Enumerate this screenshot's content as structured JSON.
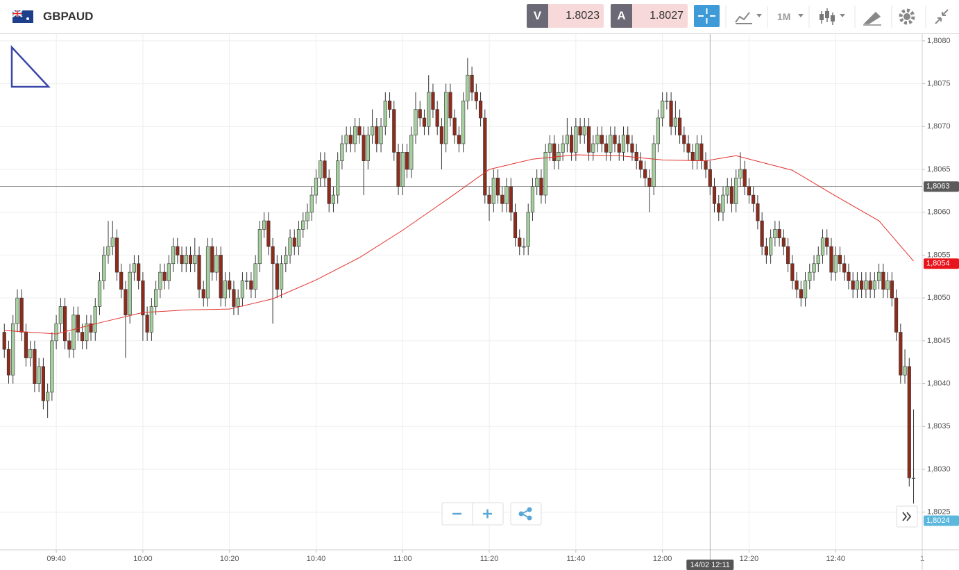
{
  "toolbar": {
    "symbol": "GBPAUD",
    "sell": {
      "label": "V",
      "price": 1.8023
    },
    "buy": {
      "label": "A",
      "price": 1.8027
    },
    "timeframe": "1M"
  },
  "chart_data": {
    "type": "candlestick",
    "grid": true,
    "up_color": "#a6cf9f",
    "down_color": "#8e2c1c",
    "x": [
      "09:28",
      "09:29",
      "09:30",
      "09:31",
      "09:32",
      "09:33",
      "09:34",
      "09:35",
      "09:36",
      "09:37",
      "09:38",
      "09:39",
      "09:40",
      "09:41",
      "09:42",
      "09:43",
      "09:44",
      "09:45",
      "09:46",
      "09:47",
      "09:48",
      "09:49",
      "09:50",
      "09:51",
      "09:52",
      "09:53",
      "09:54",
      "09:55",
      "09:56",
      "09:57",
      "09:58",
      "09:59",
      "10:00",
      "10:01",
      "10:02",
      "10:03",
      "10:04",
      "10:05",
      "10:06",
      "10:07",
      "10:08",
      "10:09",
      "10:10",
      "10:11",
      "10:12",
      "10:13",
      "10:14",
      "10:15",
      "10:16",
      "10:17",
      "10:18",
      "10:19",
      "10:20",
      "10:21",
      "10:22",
      "10:23",
      "10:24",
      "10:25",
      "10:26",
      "10:27",
      "10:28",
      "10:29",
      "10:30",
      "10:31",
      "10:32",
      "10:33",
      "10:34",
      "10:35",
      "10:36",
      "10:37",
      "10:38",
      "10:39",
      "10:40",
      "10:41",
      "10:42",
      "10:43",
      "10:44",
      "10:45",
      "10:46",
      "10:47",
      "10:48",
      "10:49",
      "10:50",
      "10:51",
      "10:52",
      "10:53",
      "10:54",
      "10:55",
      "10:56",
      "10:57",
      "10:58",
      "10:59",
      "11:00",
      "11:01",
      "11:02",
      "11:03",
      "11:04",
      "11:05",
      "11:06",
      "11:07",
      "11:08",
      "11:09",
      "11:10",
      "11:11",
      "11:12",
      "11:13",
      "11:14",
      "11:15",
      "11:16",
      "11:17",
      "11:18",
      "11:19",
      "11:20",
      "11:21",
      "11:22",
      "11:23",
      "11:24",
      "11:25",
      "11:26",
      "11:27",
      "11:28",
      "11:29",
      "11:30",
      "11:31",
      "11:32",
      "11:33",
      "11:34",
      "11:35",
      "11:36",
      "11:37",
      "11:38",
      "11:39",
      "11:40",
      "11:41",
      "11:42",
      "11:43",
      "11:44",
      "11:45",
      "11:46",
      "11:47",
      "11:48",
      "11:49",
      "11:50",
      "11:51",
      "11:52",
      "11:53",
      "11:54",
      "11:55",
      "11:56",
      "11:57",
      "11:58",
      "11:59",
      "12:00",
      "12:01",
      "12:02",
      "12:03",
      "12:04",
      "12:05",
      "12:06",
      "12:07",
      "12:08",
      "12:09",
      "12:10",
      "12:11",
      "12:12",
      "12:13",
      "12:14",
      "12:15",
      "12:16",
      "12:17",
      "12:18",
      "12:19",
      "12:20",
      "12:21",
      "12:22",
      "12:23",
      "12:24",
      "12:25",
      "12:26",
      "12:27",
      "12:28",
      "12:29",
      "12:30",
      "12:31",
      "12:32",
      "12:33",
      "12:34",
      "12:35",
      "12:36",
      "12:37",
      "12:38",
      "12:39",
      "12:40",
      "12:41",
      "12:42",
      "12:43",
      "12:44",
      "12:45",
      "12:46",
      "12:47",
      "12:48",
      "12:49",
      "12:50",
      "12:51",
      "12:52",
      "12:53",
      "12:54",
      "12:55",
      "12:56",
      "12:57",
      "12:58"
    ],
    "open": [
      1.8046,
      1.8044,
      1.8041,
      1.8047,
      1.805,
      1.8046,
      1.8043,
      1.8044,
      1.804,
      1.8042,
      1.8038,
      1.8039,
      1.8045,
      1.8047,
      1.8049,
      1.8045,
      1.8044,
      1.8048,
      1.8046,
      1.8045,
      1.8047,
      1.8046,
      1.8049,
      1.8052,
      1.8055,
      1.8056,
      1.8057,
      1.8053,
      1.8051,
      1.8048,
      1.8053,
      1.8054,
      1.8052,
      1.8048,
      1.8046,
      1.8049,
      1.8051,
      1.8053,
      1.8052,
      1.8054,
      1.8056,
      1.8055,
      1.8054,
      1.8055,
      1.8054,
      1.8055,
      1.8051,
      1.805,
      1.8056,
      1.8053,
      1.8055,
      1.805,
      1.8052,
      1.8051,
      1.8049,
      1.805,
      1.8052,
      1.8052,
      1.8051,
      1.8054,
      1.8058,
      1.8059,
      1.8056,
      1.8054,
      1.8051,
      1.8054,
      1.8055,
      1.8057,
      1.8056,
      1.8058,
      1.8059,
      1.806,
      1.8062,
      1.8064,
      1.8066,
      1.8064,
      1.8061,
      1.8062,
      1.8066,
      1.8068,
      1.8069,
      1.8068,
      1.807,
      1.8069,
      1.8066,
      1.8069,
      1.807,
      1.8068,
      1.807,
      1.8073,
      1.8072,
      1.8067,
      1.8063,
      1.8067,
      1.8065,
      1.8069,
      1.8072,
      1.8071,
      1.807,
      1.8074,
      1.8072,
      1.807,
      1.8068,
      1.8074,
      1.8071,
      1.8069,
      1.8068,
      1.8073,
      1.8076,
      1.8074,
      1.8073,
      1.8071,
      1.8062,
      1.8061,
      1.8064,
      1.8062,
      1.8061,
      1.8063,
      1.806,
      1.8057,
      1.8056,
      1.8056,
      1.806,
      1.8063,
      1.8064,
      1.8062,
      1.8067,
      1.8068,
      1.8066,
      1.8067,
      1.8068,
      1.8069,
      1.8067,
      1.807,
      1.8069,
      1.807,
      1.8067,
      1.8068,
      1.8069,
      1.8068,
      1.8067,
      1.8069,
      1.8068,
      1.8067,
      1.8069,
      1.8068,
      1.8067,
      1.8066,
      1.8065,
      1.8064,
      1.8063,
      1.8068,
      1.8071,
      1.8073,
      1.8073,
      1.807,
      1.8071,
      1.8069,
      1.8068,
      1.8067,
      1.8066,
      1.8068,
      1.8066,
      1.8065,
      1.8063,
      1.8061,
      1.806,
      1.8062,
      1.8063,
      1.8061,
      1.8064,
      1.8065,
      1.8063,
      1.8062,
      1.8061,
      1.8059,
      1.8056,
      1.8055,
      1.8057,
      1.8058,
      1.8057,
      1.8056,
      1.8054,
      1.8052,
      1.8051,
      1.805,
      1.8052,
      1.8053,
      1.8054,
      1.8055,
      1.8057,
      1.8056,
      1.8053,
      1.8055,
      1.8054,
      1.8053,
      1.8052,
      1.8051,
      1.8052,
      1.8051,
      1.8052,
      1.8051,
      1.8052,
      1.8053,
      1.8051,
      1.8052,
      1.805,
      1.8046,
      1.8041,
      1.8042,
      1.8029
    ],
    "high": [
      1.8047,
      1.8045,
      1.8048,
      1.8051,
      1.8051,
      1.8047,
      1.8045,
      1.8045,
      1.8043,
      1.8043,
      1.804,
      1.8046,
      1.8048,
      1.805,
      1.805,
      1.8046,
      1.8049,
      1.8049,
      1.8047,
      1.8048,
      1.8048,
      1.805,
      1.8053,
      1.8056,
      1.8059,
      1.8059,
      1.8058,
      1.8054,
      1.8052,
      1.8054,
      1.8055,
      1.8055,
      1.8053,
      1.8049,
      1.805,
      1.8052,
      1.8054,
      1.8054,
      1.8055,
      1.8057,
      1.8057,
      1.8056,
      1.8056,
      1.8056,
      1.8057,
      1.8056,
      1.8052,
      1.8057,
      1.8057,
      1.8056,
      1.8056,
      1.8053,
      1.8053,
      1.8052,
      1.8051,
      1.8053,
      1.8053,
      1.8053,
      1.8055,
      1.8059,
      1.806,
      1.806,
      1.8057,
      1.8055,
      1.8055,
      1.8056,
      1.8058,
      1.8058,
      1.8059,
      1.806,
      1.8061,
      1.8063,
      1.8065,
      1.8067,
      1.8067,
      1.8065,
      1.8063,
      1.8067,
      1.8069,
      1.807,
      1.807,
      1.8071,
      1.8071,
      1.807,
      1.807,
      1.8072,
      1.8071,
      1.8071,
      1.8074,
      1.8074,
      1.8073,
      1.8068,
      1.8068,
      1.8068,
      1.807,
      1.8074,
      1.8073,
      1.8072,
      1.8076,
      1.8075,
      1.8073,
      1.8071,
      1.8075,
      1.8075,
      1.8072,
      1.807,
      1.8074,
      1.8078,
      1.8077,
      1.8075,
      1.8074,
      1.8072,
      1.8063,
      1.8065,
      1.8065,
      1.8063,
      1.8064,
      1.8064,
      1.8061,
      1.8058,
      1.8057,
      1.8061,
      1.8064,
      1.8065,
      1.8065,
      1.8068,
      1.8069,
      1.8069,
      1.8068,
      1.8069,
      1.8071,
      1.807,
      1.8071,
      1.8071,
      1.8071,
      1.8071,
      1.8069,
      1.807,
      1.807,
      1.8069,
      1.807,
      1.807,
      1.8069,
      1.807,
      1.807,
      1.8069,
      1.8068,
      1.8067,
      1.8066,
      1.8065,
      1.8069,
      1.8072,
      1.8074,
      1.8074,
      1.8074,
      1.8073,
      1.8072,
      1.807,
      1.8069,
      1.8068,
      1.8069,
      1.8069,
      1.8067,
      1.8066,
      1.8064,
      1.8062,
      1.8063,
      1.8064,
      1.8064,
      1.8065,
      1.8067,
      1.8066,
      1.8064,
      1.8063,
      1.8062,
      1.806,
      1.8057,
      1.8058,
      1.8059,
      1.8059,
      1.8058,
      1.8057,
      1.8055,
      1.8053,
      1.8052,
      1.8053,
      1.8054,
      1.8055,
      1.8056,
      1.8058,
      1.8058,
      1.8057,
      1.8056,
      1.8056,
      1.8055,
      1.8054,
      1.8053,
      1.8053,
      1.8053,
      1.8053,
      1.8053,
      1.8053,
      1.8054,
      1.8054,
      1.8053,
      1.8053,
      1.8051,
      1.8047,
      1.8044,
      1.8043,
      1.8037
    ],
    "low": [
      1.8043,
      1.804,
      1.804,
      1.8046,
      1.8045,
      1.8042,
      1.8042,
      1.8039,
      1.8039,
      1.8037,
      1.8036,
      1.8038,
      1.8044,
      1.8046,
      1.8044,
      1.8043,
      1.8043,
      1.8045,
      1.8044,
      1.8044,
      1.8045,
      1.8045,
      1.8048,
      1.8051,
      1.8054,
      1.8055,
      1.8052,
      1.805,
      1.8043,
      1.8047,
      1.8052,
      1.8051,
      1.8045,
      1.8045,
      1.8045,
      1.8048,
      1.805,
      1.8051,
      1.8051,
      1.8053,
      1.8054,
      1.8053,
      1.8053,
      1.8053,
      1.8053,
      1.805,
      1.8049,
      1.8049,
      1.8052,
      1.8052,
      1.8049,
      1.8049,
      1.805,
      1.8048,
      1.8048,
      1.8049,
      1.8051,
      1.805,
      1.805,
      1.8053,
      1.8057,
      1.8055,
      1.8047,
      1.805,
      1.805,
      1.8053,
      1.8054,
      1.8055,
      1.8055,
      1.8057,
      1.8058,
      1.8059,
      1.8061,
      1.8063,
      1.8063,
      1.806,
      1.806,
      1.8061,
      1.8065,
      1.8067,
      1.8067,
      1.8067,
      1.8068,
      1.8062,
      1.8065,
      1.8068,
      1.8067,
      1.8067,
      1.8069,
      1.8071,
      1.8066,
      1.8062,
      1.8062,
      1.8064,
      1.8064,
      1.8068,
      1.807,
      1.8069,
      1.8069,
      1.8071,
      1.8069,
      1.8065,
      1.8067,
      1.807,
      1.8068,
      1.8067,
      1.8067,
      1.8072,
      1.8073,
      1.8072,
      1.807,
      1.8061,
      1.8059,
      1.806,
      1.8061,
      1.806,
      1.806,
      1.8059,
      1.8056,
      1.8055,
      1.8055,
      1.8055,
      1.8059,
      1.8062,
      1.8061,
      1.8061,
      1.8066,
      1.8065,
      1.8065,
      1.8066,
      1.8067,
      1.8066,
      1.8066,
      1.8068,
      1.8068,
      1.8066,
      1.8066,
      1.8067,
      1.8067,
      1.8066,
      1.8066,
      1.8067,
      1.8066,
      1.8066,
      1.8067,
      1.8066,
      1.8065,
      1.8064,
      1.8063,
      1.806,
      1.8062,
      1.8067,
      1.807,
      1.8072,
      1.8069,
      1.8069,
      1.8068,
      1.8067,
      1.8066,
      1.8065,
      1.8065,
      1.8065,
      1.8064,
      1.8062,
      1.806,
      1.8059,
      1.8059,
      1.8061,
      1.806,
      1.806,
      1.8063,
      1.8062,
      1.8061,
      1.806,
      1.8058,
      1.8055,
      1.8054,
      1.8054,
      1.8056,
      1.8056,
      1.8055,
      1.8053,
      1.8051,
      1.805,
      1.8049,
      1.8049,
      1.8051,
      1.8052,
      1.8053,
      1.8054,
      1.8055,
      1.8052,
      1.8052,
      1.8053,
      1.8052,
      1.8051,
      1.805,
      1.805,
      1.805,
      1.805,
      1.805,
      1.805,
      1.8051,
      1.805,
      1.805,
      1.8049,
      1.8045,
      1.804,
      1.804,
      1.8028,
      1.8026
    ],
    "close": [
      1.8044,
      1.8041,
      1.8047,
      1.805,
      1.8046,
      1.8043,
      1.8044,
      1.804,
      1.8042,
      1.8038,
      1.8039,
      1.8045,
      1.8047,
      1.8049,
      1.8045,
      1.8044,
      1.8048,
      1.8046,
      1.8045,
      1.8047,
      1.8046,
      1.8049,
      1.8052,
      1.8055,
      1.8056,
      1.8057,
      1.8053,
      1.8051,
      1.8048,
      1.8053,
      1.8054,
      1.8052,
      1.8048,
      1.8046,
      1.8049,
      1.8051,
      1.8053,
      1.8052,
      1.8054,
      1.8056,
      1.8055,
      1.8054,
      1.8055,
      1.8054,
      1.8055,
      1.8051,
      1.805,
      1.8056,
      1.8053,
      1.8055,
      1.805,
      1.8052,
      1.8051,
      1.8049,
      1.805,
      1.8052,
      1.8052,
      1.8051,
      1.8054,
      1.8058,
      1.8059,
      1.8056,
      1.8054,
      1.8051,
      1.8054,
      1.8055,
      1.8057,
      1.8056,
      1.8058,
      1.8059,
      1.806,
      1.8062,
      1.8064,
      1.8066,
      1.8064,
      1.8061,
      1.8062,
      1.8066,
      1.8068,
      1.8069,
      1.8068,
      1.807,
      1.8069,
      1.8066,
      1.8069,
      1.807,
      1.8068,
      1.807,
      1.8073,
      1.8072,
      1.8067,
      1.8063,
      1.8067,
      1.8065,
      1.8069,
      1.8072,
      1.8071,
      1.807,
      1.8074,
      1.8072,
      1.807,
      1.8068,
      1.8074,
      1.8071,
      1.8069,
      1.8068,
      1.8073,
      1.8076,
      1.8074,
      1.8073,
      1.8071,
      1.8062,
      1.8061,
      1.8064,
      1.8062,
      1.8061,
      1.8063,
      1.806,
      1.8057,
      1.8056,
      1.8056,
      1.806,
      1.8063,
      1.8064,
      1.8062,
      1.8067,
      1.8068,
      1.8066,
      1.8067,
      1.8068,
      1.8069,
      1.8067,
      1.807,
      1.8069,
      1.807,
      1.8067,
      1.8068,
      1.8069,
      1.8068,
      1.8067,
      1.8069,
      1.8068,
      1.8067,
      1.8069,
      1.8068,
      1.8067,
      1.8066,
      1.8065,
      1.8064,
      1.8063,
      1.8068,
      1.8071,
      1.8073,
      1.8073,
      1.807,
      1.8071,
      1.8069,
      1.8068,
      1.8067,
      1.8066,
      1.8068,
      1.8066,
      1.8065,
      1.8063,
      1.8061,
      1.806,
      1.8062,
      1.8063,
      1.8061,
      1.8064,
      1.8065,
      1.8063,
      1.8062,
      1.8061,
      1.8059,
      1.8056,
      1.8055,
      1.8057,
      1.8058,
      1.8057,
      1.8056,
      1.8054,
      1.8052,
      1.8051,
      1.805,
      1.8052,
      1.8053,
      1.8054,
      1.8055,
      1.8057,
      1.8056,
      1.8053,
      1.8055,
      1.8054,
      1.8053,
      1.8052,
      1.8051,
      1.8052,
      1.8051,
      1.8052,
      1.8051,
      1.8052,
      1.8053,
      1.8051,
      1.8052,
      1.805,
      1.8046,
      1.8041,
      1.8042,
      1.8029,
      1.8029
    ],
    "moving_average": {
      "color": "#e0312b",
      "x": [
        "09:28",
        "09:40",
        "09:50",
        "10:00",
        "10:10",
        "10:20",
        "10:30",
        "10:40",
        "10:50",
        "11:00",
        "11:10",
        "11:20",
        "11:30",
        "11:40",
        "11:50",
        "12:00",
        "12:10",
        "12:17",
        "12:30",
        "12:40",
        "12:50",
        "12:58"
      ],
      "values": [
        1.80462,
        1.80458,
        1.80471,
        1.80483,
        1.80486,
        1.80487,
        1.80499,
        1.80521,
        1.80547,
        1.80579,
        1.80614,
        1.8065,
        1.80662,
        1.80667,
        1.80666,
        1.80661,
        1.8066,
        1.80666,
        1.80649,
        1.80619,
        1.8059,
        1.80543
      ]
    },
    "xlim": [
      "09:27",
      "13:00"
    ],
    "xticks": [
      "09:40",
      "10:00",
      "10:20",
      "10:40",
      "11:00",
      "11:20",
      "11:40",
      "12:00",
      "12:20",
      "12:40",
      {
        "value": "13:00",
        "label": "1"
      }
    ],
    "ylim": [
      1.80206,
      1.80808
    ],
    "yticks": [
      {
        "value": 1.8025,
        "label": "1,8025"
      },
      {
        "value": 1.803,
        "label": "1,8030"
      },
      {
        "value": 1.8035,
        "label": "1,8035"
      },
      {
        "value": 1.804,
        "label": "1,8040"
      },
      {
        "value": 1.8045,
        "label": "1,8045"
      },
      {
        "value": 1.805,
        "label": "1,8050"
      },
      {
        "value": 1.8055,
        "label": "1,8055"
      },
      {
        "value": 1.806,
        "label": "1,8060"
      },
      {
        "value": 1.8065,
        "label": "1,8065"
      },
      {
        "value": 1.807,
        "label": "1,8070"
      },
      {
        "value": 1.8075,
        "label": "1,8075"
      },
      {
        "value": 1.808,
        "label": "1,8080"
      }
    ],
    "price_lines": [
      {
        "value": 1.8063,
        "label": "1,8063",
        "color": "#5a5a5a",
        "line": true
      },
      {
        "value": 1.8054,
        "label": "1,8054",
        "color": "#e8141b",
        "line": false
      },
      {
        "value": 1.8024,
        "label": "1,8024",
        "color": "#5bb8dc",
        "line": false
      }
    ],
    "crosshair": {
      "label": "14/02 12:11"
    }
  }
}
